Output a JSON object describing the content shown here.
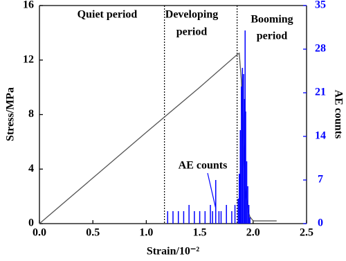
{
  "chart_data": {
    "type": "line",
    "xlabel": "Strain/10⁻²",
    "ylabel": "Stress/MPa",
    "y2label": "AE counts",
    "xlim": [
      0,
      2.5
    ],
    "xticks": [
      {
        "value": 0,
        "label": "0.0"
      },
      0.5,
      {
        "value": 1,
        "label": "1.0"
      },
      1.5,
      {
        "value": 2,
        "label": "2.0"
      },
      2.5
    ],
    "ylim": [
      0,
      16
    ],
    "yticks": [
      0,
      4,
      8,
      12,
      16
    ],
    "y2lim": [
      0,
      35
    ],
    "y2ticks": [
      0,
      7,
      14,
      21,
      28,
      35
    ],
    "y2color": "#0000ff",
    "boundaries": [
      1.17,
      1.85
    ],
    "annotations": [
      {
        "lines": [
          "Quiet period"
        ]
      },
      {
        "lines": [
          "Developing",
          "period"
        ]
      },
      {
        "lines": [
          "Booming",
          "period"
        ]
      },
      {
        "lines": [
          "AE counts"
        ]
      }
    ],
    "series": [
      {
        "type": "line",
        "color": "#555555",
        "x": [
          0,
          0.5,
          1.0,
          1.5,
          1.85,
          1.87,
          1.89,
          1.91,
          1.93,
          1.95,
          1.97,
          2.0,
          2.22
        ],
        "values": [
          0,
          3.35,
          6.7,
          10.0,
          12.4,
          12.5,
          10.5,
          6,
          2.5,
          1.0,
          0.5,
          0.2,
          0.2
        ]
      },
      {
        "type": "stem",
        "axis": "y2",
        "color": "#0000ff",
        "x": [
          1.2,
          1.25,
          1.3,
          1.35,
          1.4,
          1.45,
          1.5,
          1.55,
          1.6,
          1.62,
          1.65,
          1.68,
          1.7,
          1.75,
          1.8,
          1.83,
          1.86,
          1.87,
          1.88,
          1.89,
          1.9,
          1.91,
          1.92,
          1.925,
          1.93,
          1.94,
          1.95,
          1.96,
          1.97
        ],
        "values": [
          2,
          2,
          2,
          2,
          3,
          2,
          2,
          2,
          3,
          2,
          7,
          2,
          2,
          3,
          2,
          3,
          4,
          8,
          15,
          22,
          25,
          24,
          20,
          31,
          18,
          10,
          6,
          3,
          1
        ]
      }
    ]
  }
}
